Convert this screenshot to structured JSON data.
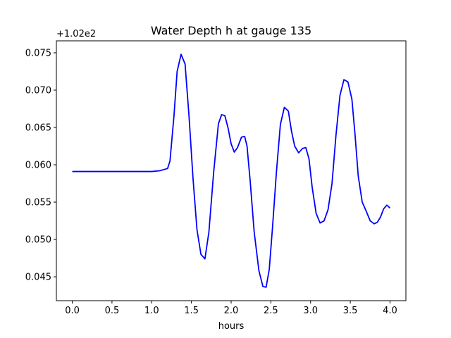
{
  "chart_data": {
    "type": "line",
    "title": "Water Depth h at gauge 135",
    "xlabel": "hours",
    "ylabel": "",
    "offset_label": "+1.02e2",
    "xlim": [
      -0.2,
      4.2
    ],
    "ylim": [
      0.0418,
      0.0766
    ],
    "x_ticks": [
      0.0,
      0.5,
      1.0,
      1.5,
      2.0,
      2.5,
      3.0,
      3.5,
      4.0
    ],
    "x_tick_labels": [
      "0.0",
      "0.5",
      "1.0",
      "1.5",
      "2.0",
      "2.5",
      "3.0",
      "3.5",
      "4.0"
    ],
    "y_ticks": [
      0.045,
      0.05,
      0.055,
      0.06,
      0.065,
      0.07,
      0.075
    ],
    "y_tick_labels": [
      "0.045",
      "0.050",
      "0.055",
      "0.060",
      "0.065",
      "0.070",
      "0.075"
    ],
    "grid": false,
    "series": [
      {
        "color": "#0000ff",
        "x": [
          0.0,
          0.5,
          0.9,
          1.0,
          1.1,
          1.2,
          1.23,
          1.28,
          1.32,
          1.37,
          1.42,
          1.47,
          1.52,
          1.57,
          1.62,
          1.67,
          1.72,
          1.78,
          1.84,
          1.88,
          1.92,
          1.96,
          2.0,
          2.04,
          2.08,
          2.13,
          2.17,
          2.2,
          2.24,
          2.29,
          2.35,
          2.4,
          2.44,
          2.48,
          2.52,
          2.57,
          2.62,
          2.67,
          2.72,
          2.76,
          2.8,
          2.85,
          2.9,
          2.94,
          2.98,
          3.02,
          3.07,
          3.12,
          3.17,
          3.22,
          3.27,
          3.32,
          3.37,
          3.42,
          3.47,
          3.52,
          3.56,
          3.6,
          3.65,
          3.7,
          3.75,
          3.8,
          3.84,
          3.88,
          3.92,
          3.96,
          4.0
        ],
        "y": [
          0.0591,
          0.0591,
          0.0591,
          0.0591,
          0.0592,
          0.0595,
          0.0605,
          0.0665,
          0.0725,
          0.0748,
          0.0735,
          0.0665,
          0.0582,
          0.0513,
          0.048,
          0.0474,
          0.051,
          0.059,
          0.0655,
          0.0667,
          0.0666,
          0.065,
          0.0628,
          0.0617,
          0.0623,
          0.0637,
          0.0638,
          0.0625,
          0.0578,
          0.051,
          0.0458,
          0.0437,
          0.0436,
          0.046,
          0.0515,
          0.059,
          0.0654,
          0.0677,
          0.0672,
          0.0645,
          0.0625,
          0.0616,
          0.0622,
          0.0623,
          0.0608,
          0.057,
          0.0535,
          0.0522,
          0.0525,
          0.054,
          0.0575,
          0.064,
          0.0693,
          0.0714,
          0.0711,
          0.0688,
          0.064,
          0.0585,
          0.055,
          0.0538,
          0.0525,
          0.0521,
          0.0523,
          0.053,
          0.0541,
          0.0546,
          0.0542
        ]
      }
    ]
  }
}
